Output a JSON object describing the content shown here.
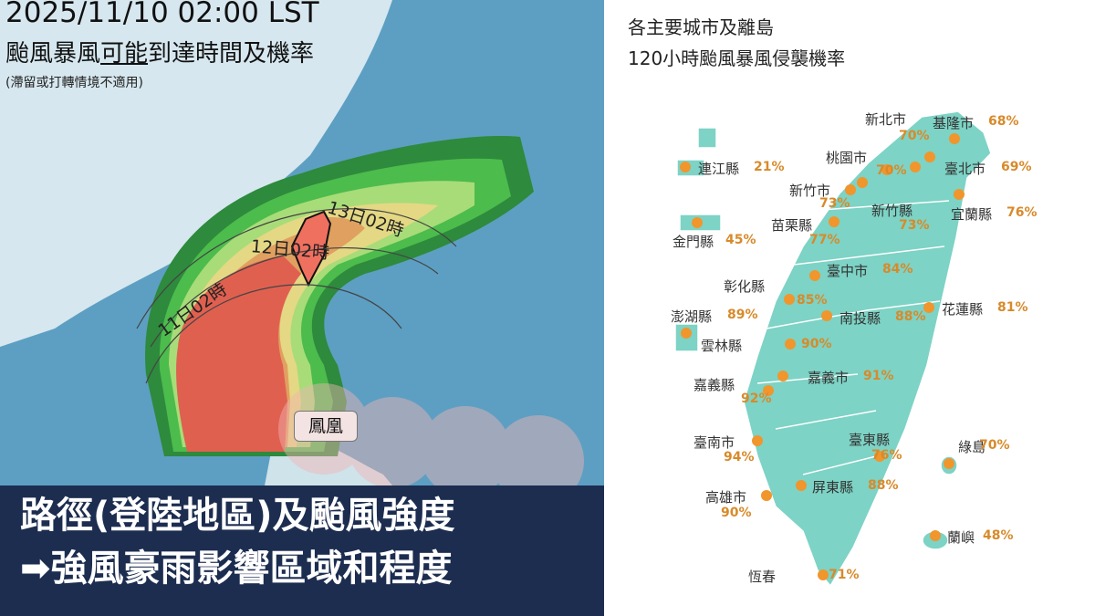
{
  "left_map": {
    "timestamp": "2025/11/10 02:00 LST",
    "title_pre": "颱風暴風",
    "title_underlined": "可能",
    "title_post": "到達時間及機率",
    "note": "(滯留或打轉情境不適用)",
    "time_labels": [
      "13日02時",
      "12日02時",
      "11日02時"
    ],
    "typhoon_name": "鳳凰",
    "probability_colors": [
      "#2e8a3c",
      "#4cbc4c",
      "#a8dc78",
      "#e4d884",
      "#e0a060",
      "#e06050"
    ]
  },
  "banner": {
    "line1": "路徑(登陸地區)及颱風強度",
    "arrow_icon": "right-arrow-icon",
    "line2": "強風豪雨影響區域和程度"
  },
  "right_map": {
    "title_line1": "各主要城市及離島",
    "title_line2": "120小時颱風暴風侵襲機率",
    "land_color": "#7dd3c5",
    "dot_color": "#f0962d",
    "cities": [
      {
        "name": "新北市",
        "pct": "70%"
      },
      {
        "name": "基隆市",
        "pct": "68%"
      },
      {
        "name": "桃園市",
        "pct": "70%"
      },
      {
        "name": "臺北市",
        "pct": "69%"
      },
      {
        "name": "連江縣",
        "pct": "21%"
      },
      {
        "name": "新竹市",
        "pct": "73%"
      },
      {
        "name": "新竹縣",
        "pct": "73%"
      },
      {
        "name": "宜蘭縣",
        "pct": "76%"
      },
      {
        "name": "苗栗縣",
        "pct": "77%"
      },
      {
        "name": "金門縣",
        "pct": "45%"
      },
      {
        "name": "臺中市",
        "pct": "84%"
      },
      {
        "name": "彰化縣",
        "pct": "85%"
      },
      {
        "name": "花蓮縣",
        "pct": "81%"
      },
      {
        "name": "澎湖縣",
        "pct": "89%"
      },
      {
        "name": "南投縣",
        "pct": "88%"
      },
      {
        "name": "雲林縣",
        "pct": "90%"
      },
      {
        "name": "嘉義縣",
        "pct": "92%"
      },
      {
        "name": "嘉義市",
        "pct": "91%"
      },
      {
        "name": "臺南市",
        "pct": "94%"
      },
      {
        "name": "臺東縣",
        "pct": "76%"
      },
      {
        "name": "綠島",
        "pct": "70%"
      },
      {
        "name": "屏東縣",
        "pct": "88%"
      },
      {
        "name": "高雄市",
        "pct": "90%"
      },
      {
        "name": "蘭嶼",
        "pct": "48%"
      },
      {
        "name": "恆春",
        "pct": "71%"
      }
    ]
  }
}
